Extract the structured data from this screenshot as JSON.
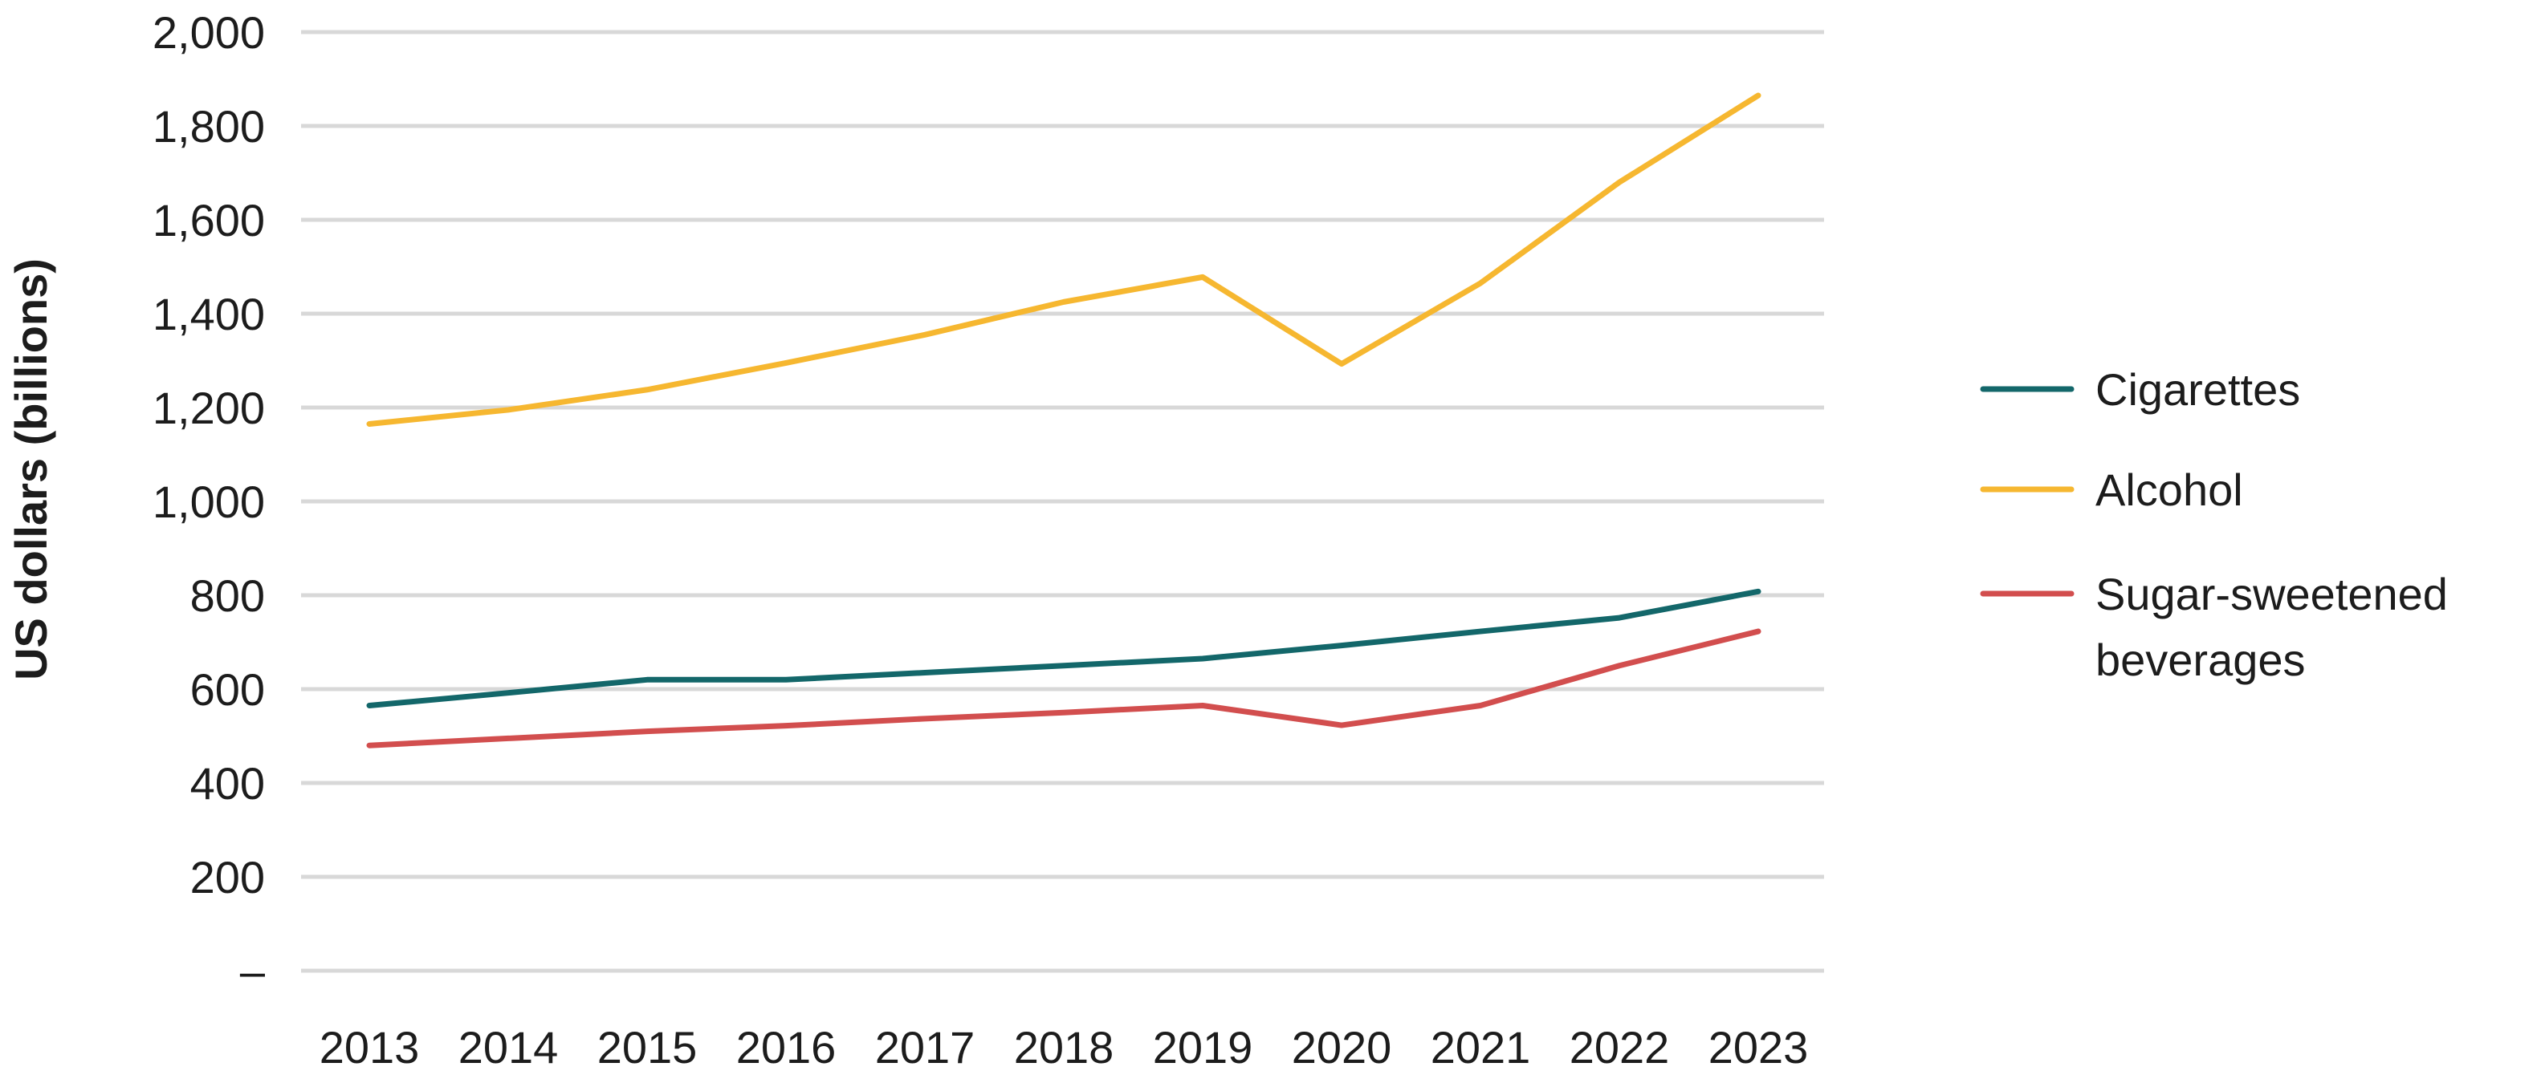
{
  "chart_data": {
    "type": "line",
    "title": "",
    "xlabel": "",
    "ylabel": "US dollars (billions)",
    "categories": [
      "2013",
      "2014",
      "2015",
      "2016",
      "2017",
      "2018",
      "2019",
      "2020",
      "2021",
      "2022",
      "2023"
    ],
    "y_ticks": [
      "–",
      "200",
      "400",
      "600",
      "800",
      "1,000",
      "1,200",
      "1,400",
      "1,600",
      "1,800",
      "2,000"
    ],
    "ylim": [
      0,
      2000
    ],
    "grid": true,
    "legend_position": "right",
    "series": [
      {
        "name": "Cigarettes",
        "color": "#13676a",
        "values": [
          565,
          592,
          620,
          620,
          635,
          650,
          665,
          693,
          723,
          752,
          808
        ]
      },
      {
        "name": "Alcohol",
        "color": "#f6b730",
        "values": [
          1165,
          1195,
          1238,
          1295,
          1355,
          1425,
          1478,
          1293,
          1465,
          1680,
          1865
        ]
      },
      {
        "name": "Sugar-sweetened beverages",
        "legend_lines": [
          "Sugar-sweetened",
          "beverages"
        ],
        "color": "#d24e4e",
        "values": [
          480,
          495,
          510,
          522,
          537,
          550,
          565,
          523,
          565,
          650,
          723
        ]
      }
    ]
  }
}
